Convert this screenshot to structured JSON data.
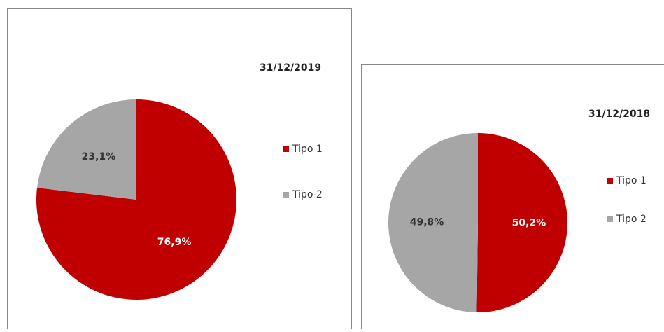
{
  "chart_data": [
    {
      "type": "pie",
      "title": "31/12/2019",
      "series": [
        {
          "name": "Tipo 1",
          "color": "#c00000",
          "values": [
            76.9
          ]
        },
        {
          "name": "Tipo 2",
          "color": "#a6a6a6",
          "values": [
            23.1
          ]
        }
      ],
      "value_labels": [
        "76,9%",
        "23,1%"
      ],
      "legend": "right"
    },
    {
      "type": "pie",
      "title": "31/12/2018",
      "series": [
        {
          "name": "Tipo 1",
          "color": "#c00000",
          "values": [
            50.2
          ]
        },
        {
          "name": "Tipo 2",
          "color": "#a6a6a6",
          "values": [
            49.8
          ]
        }
      ],
      "value_labels": [
        "50,2%",
        "49,8%"
      ],
      "legend": "right"
    }
  ]
}
